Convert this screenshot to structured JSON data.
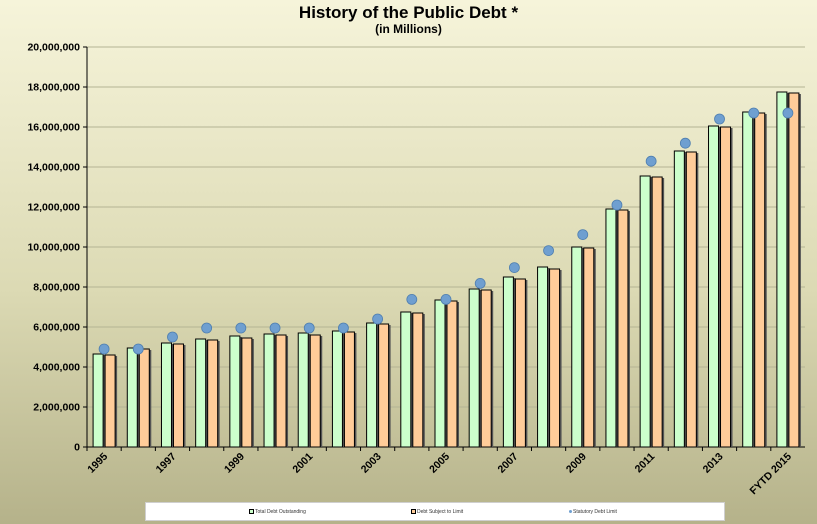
{
  "chart_data": {
    "type": "bar",
    "title": "History of the Public Debt *",
    "subtitle": "(in Millions)",
    "categories": [
      "1995",
      "1996",
      "1997",
      "1998",
      "1999",
      "2000",
      "2001",
      "2002",
      "2003",
      "2004",
      "2005",
      "2006",
      "2007",
      "2008",
      "2009",
      "2010",
      "2011",
      "2012",
      "2013",
      "2014",
      "FYTD 2015"
    ],
    "x_tick_labels": [
      "1995",
      "",
      "1997",
      "",
      "1999",
      "",
      "2001",
      "",
      "2003",
      "",
      "2005",
      "",
      "2007",
      "",
      "2009",
      "",
      "2011",
      "",
      "2013",
      "",
      "FYTD 2015"
    ],
    "y_tick_labels": [
      "0",
      "2,000,000",
      "4,000,000",
      "6,000,000",
      "8,000,000",
      "10,000,000",
      "12,000,000",
      "14,000,000",
      "16,000,000",
      "18,000,000",
      "20,000,000"
    ],
    "ylim": [
      0,
      20000000
    ],
    "grid": true,
    "legend_position": "bottom",
    "series": [
      {
        "name": "Total Debt Outstanding",
        "kind": "bar",
        "color": "#ccffcc",
        "values": [
          4650000,
          4950000,
          5200000,
          5400000,
          5550000,
          5650000,
          5700000,
          5800000,
          6200000,
          6750000,
          7350000,
          7900000,
          8500000,
          9000000,
          10000000,
          11900000,
          13550000,
          14800000,
          16050000,
          16750000,
          17750000
        ]
      },
      {
        "name": "Debt Subject to Limit",
        "kind": "bar",
        "color": "#ffcc99",
        "values": [
          4600000,
          4900000,
          5150000,
          5350000,
          5450000,
          5600000,
          5600000,
          5750000,
          6150000,
          6700000,
          7300000,
          7850000,
          8400000,
          8900000,
          9950000,
          11850000,
          13500000,
          14750000,
          16000000,
          16700000,
          17700000
        ]
      },
      {
        "name": "Statutory Debt Limit",
        "kind": "marker",
        "color": "#6f9fd0",
        "values": [
          4900000,
          4900000,
          5500000,
          5950000,
          5950000,
          5950000,
          5950000,
          5950000,
          6400000,
          7380000,
          7380000,
          8180000,
          8970000,
          9820000,
          10620000,
          12100000,
          14290000,
          15190000,
          16400000,
          16700000,
          16700000
        ]
      }
    ]
  }
}
